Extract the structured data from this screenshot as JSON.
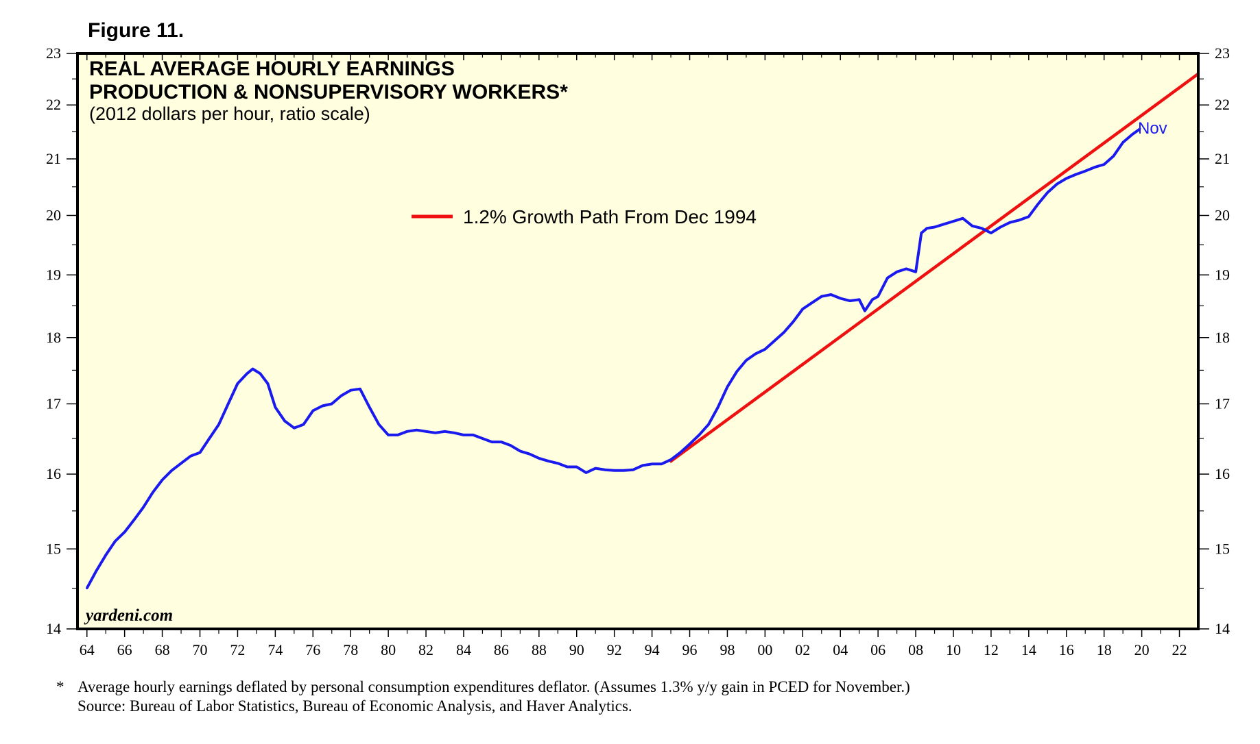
{
  "figure_label": "Figure 11.",
  "watermark": "yardeni.com",
  "footnote": {
    "marker": "*",
    "line1": "Average hourly earnings deflated by personal consumption expenditures deflator. (Assumes 1.3% y/y gain in PCED for November.)",
    "line2": "Source: Bureau of Labor Statistics, Bureau of Economic Analysis, and Haver Analytics."
  },
  "colors": {
    "background": "#ffffe0",
    "earnings_line": "#1a1aee",
    "growth_line": "#ee1111",
    "frame": "#000000"
  },
  "chart_data": {
    "type": "line",
    "title": "REAL AVERAGE HOURLY EARNINGS",
    "title_line2": "PRODUCTION & NONSUPERVISORY WORKERS*",
    "subtitle": "(2012 dollars per hour, ratio scale)",
    "y_scale": "log",
    "ylim": [
      14,
      23
    ],
    "y_ticks": [
      14,
      15,
      16,
      17,
      18,
      19,
      20,
      21,
      22,
      23
    ],
    "xlim": [
      1963.5,
      2023.0
    ],
    "x_ticks": [
      1964,
      1966,
      1968,
      1970,
      1972,
      1974,
      1976,
      1978,
      1980,
      1982,
      1984,
      1986,
      1988,
      1990,
      1992,
      1994,
      1996,
      1998,
      2000,
      2002,
      2004,
      2006,
      2008,
      2010,
      2012,
      2014,
      2016,
      2018,
      2020,
      2022
    ],
    "x_tick_labels": [
      "64",
      "66",
      "68",
      "70",
      "72",
      "74",
      "76",
      "78",
      "80",
      "82",
      "84",
      "86",
      "88",
      "90",
      "92",
      "94",
      "96",
      "98",
      "00",
      "02",
      "04",
      "06",
      "08",
      "10",
      "12",
      "14",
      "16",
      "18",
      "20",
      "22"
    ],
    "legend": "top-center",
    "series": [
      {
        "name": "Real Average Hourly Earnings",
        "end_label": "Nov",
        "x": [
          1964.0,
          1964.5,
          1965.0,
          1965.5,
          1966.0,
          1966.5,
          1967.0,
          1967.5,
          1968.0,
          1968.5,
          1969.0,
          1969.5,
          1970.0,
          1970.5,
          1971.0,
          1971.5,
          1972.0,
          1972.5,
          1972.8,
          1973.2,
          1973.6,
          1974.0,
          1974.5,
          1975.0,
          1975.5,
          1976.0,
          1976.5,
          1977.0,
          1977.5,
          1978.0,
          1978.5,
          1979.0,
          1979.5,
          1980.0,
          1980.5,
          1981.0,
          1981.5,
          1982.0,
          1982.5,
          1983.0,
          1983.5,
          1984.0,
          1984.5,
          1985.0,
          1985.5,
          1986.0,
          1986.5,
          1987.0,
          1987.5,
          1988.0,
          1988.5,
          1989.0,
          1989.5,
          1990.0,
          1990.5,
          1991.0,
          1991.5,
          1992.0,
          1992.5,
          1993.0,
          1993.5,
          1994.0,
          1994.5,
          1995.0,
          1995.5,
          1996.0,
          1996.5,
          1997.0,
          1997.5,
          1998.0,
          1998.5,
          1999.0,
          1999.5,
          2000.0,
          2000.5,
          2001.0,
          2001.5,
          2002.0,
          2002.5,
          2003.0,
          2003.5,
          2004.0,
          2004.5,
          2005.0,
          2005.3,
          2005.7,
          2006.0,
          2006.5,
          2007.0,
          2007.5,
          2008.0,
          2008.3,
          2008.6,
          2009.0,
          2009.5,
          2010.0,
          2010.5,
          2011.0,
          2011.5,
          2012.0,
          2012.5,
          2013.0,
          2013.5,
          2014.0,
          2014.5,
          2015.0,
          2015.5,
          2016.0,
          2016.5,
          2017.0,
          2017.5,
          2018.0,
          2018.5,
          2019.0,
          2019.5,
          2019.9
        ],
        "values": [
          14.5,
          14.72,
          14.92,
          15.1,
          15.22,
          15.38,
          15.55,
          15.75,
          15.92,
          16.05,
          16.15,
          16.25,
          16.3,
          16.5,
          16.7,
          17.0,
          17.3,
          17.45,
          17.52,
          17.45,
          17.3,
          16.95,
          16.75,
          16.65,
          16.7,
          16.9,
          16.97,
          17.0,
          17.12,
          17.2,
          17.22,
          16.95,
          16.7,
          16.55,
          16.55,
          16.6,
          16.62,
          16.6,
          16.58,
          16.6,
          16.58,
          16.55,
          16.55,
          16.5,
          16.45,
          16.45,
          16.4,
          16.32,
          16.28,
          16.22,
          16.18,
          16.15,
          16.1,
          16.1,
          16.02,
          16.08,
          16.06,
          16.05,
          16.05,
          16.06,
          16.12,
          16.14,
          16.14,
          16.2,
          16.3,
          16.42,
          16.55,
          16.7,
          16.95,
          17.25,
          17.48,
          17.65,
          17.75,
          17.82,
          17.95,
          18.08,
          18.25,
          18.45,
          18.55,
          18.65,
          18.68,
          18.62,
          18.58,
          18.6,
          18.42,
          18.6,
          18.65,
          18.95,
          19.05,
          19.1,
          19.05,
          19.7,
          19.78,
          19.8,
          19.85,
          19.9,
          19.95,
          19.82,
          19.78,
          19.7,
          19.8,
          19.88,
          19.92,
          19.98,
          20.2,
          20.4,
          20.55,
          20.65,
          20.72,
          20.78,
          20.85,
          20.9,
          21.05,
          21.3,
          21.45,
          21.55
        ]
      },
      {
        "name": "1.2% Growth Path From Dec 1994",
        "x": [
          1994.95,
          2023.0
        ],
        "values": [
          16.17,
          22.6
        ]
      }
    ]
  }
}
